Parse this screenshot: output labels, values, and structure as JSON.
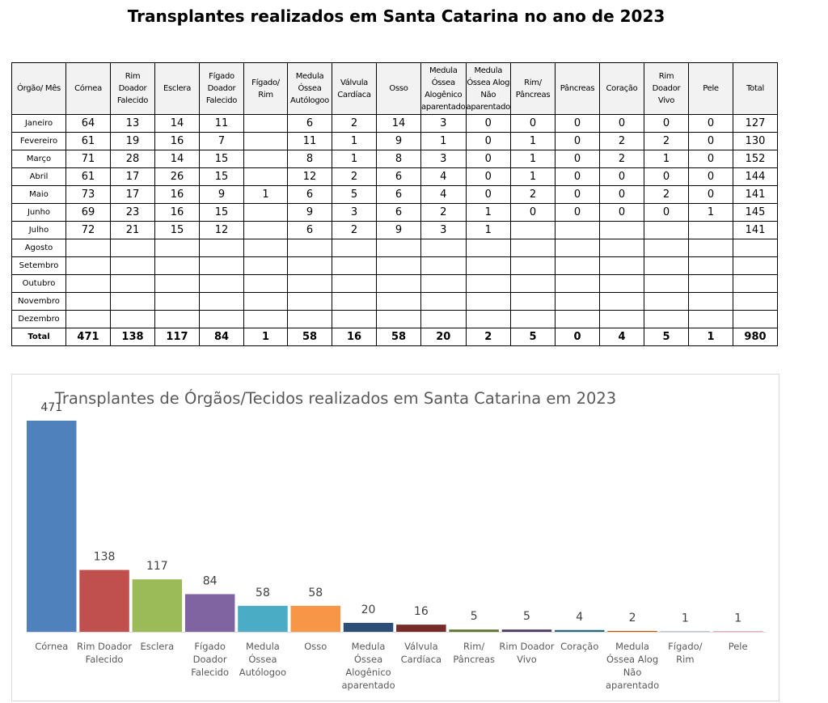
{
  "page_title": "Transplantes realizados em Santa Catarina no ano de 2023",
  "table": {
    "headers": [
      "Órgão/ Mês",
      "Córnea",
      "Rim Doador Falecido",
      "Esclera",
      "Fígado Doador Falecido",
      "Fígado/ Rim",
      "Medula Óssea Autólogoo",
      "Válvula Cardíaca",
      "Osso",
      "Medula Óssea Alogênico aparentado",
      "Medula Óssea Alog Não aparentado",
      "Rim/ Pâncreas",
      "Pâncreas",
      "Coração",
      "Rim Doador Vivo",
      "Pele",
      "Total"
    ],
    "rows": [
      [
        "Janeiro",
        "64",
        "13",
        "14",
        "11",
        "",
        "6",
        "2",
        "14",
        "3",
        "0",
        "0",
        "0",
        "0",
        "0",
        "0",
        "127"
      ],
      [
        "Fevereiro",
        "61",
        "19",
        "16",
        "7",
        "",
        "11",
        "1",
        "9",
        "1",
        "0",
        "1",
        "0",
        "2",
        "2",
        "0",
        "130"
      ],
      [
        "Março",
        "71",
        "28",
        "14",
        "15",
        "",
        "8",
        "1",
        "8",
        "3",
        "0",
        "1",
        "0",
        "2",
        "1",
        "0",
        "152"
      ],
      [
        "Abril",
        "61",
        "17",
        "26",
        "15",
        "",
        "12",
        "2",
        "6",
        "4",
        "0",
        "1",
        "0",
        "0",
        "0",
        "0",
        "144"
      ],
      [
        "Maio",
        "73",
        "17",
        "16",
        "9",
        "1",
        "6",
        "5",
        "6",
        "4",
        "0",
        "2",
        "0",
        "0",
        "2",
        "0",
        "141"
      ],
      [
        "Junho",
        "69",
        "23",
        "16",
        "15",
        "",
        "9",
        "3",
        "6",
        "2",
        "1",
        "0",
        "0",
        "0",
        "0",
        "1",
        "145"
      ],
      [
        "Julho",
        "72",
        "21",
        "15",
        "12",
        "",
        "6",
        "2",
        "9",
        "3",
        "1",
        "",
        "",
        "",
        "",
        "",
        "141"
      ],
      [
        "Agosto",
        "",
        "",
        "",
        "",
        "",
        "",
        "",
        "",
        "",
        "",
        "",
        "",
        "",
        "",
        "",
        ""
      ],
      [
        "Setembro",
        "",
        "",
        "",
        "",
        "",
        "",
        "",
        "",
        "",
        "",
        "",
        "",
        "",
        "",
        "",
        ""
      ],
      [
        "Outubro",
        "",
        "",
        "",
        "",
        "",
        "",
        "",
        "",
        "",
        "",
        "",
        "",
        "",
        "",
        "",
        ""
      ],
      [
        "Novembro",
        "",
        "",
        "",
        "",
        "",
        "",
        "",
        "",
        "",
        "",
        "",
        "",
        "",
        "",
        "",
        ""
      ],
      [
        "Dezembro",
        "",
        "",
        "",
        "",
        "",
        "",
        "",
        "",
        "",
        "",
        "",
        "",
        "",
        "",
        "",
        ""
      ]
    ],
    "total_row": [
      "Total",
      "471",
      "138",
      "117",
      "84",
      "1",
      "58",
      "16",
      "58",
      "20",
      "2",
      "5",
      "0",
      "4",
      "5",
      "1",
      "980"
    ]
  },
  "chart_data": {
    "type": "bar",
    "title": "Transplantes de Órgãos/Tecidos realizados em Santa Catarina em 2023",
    "xlabel": "",
    "ylabel": "",
    "categories": [
      "Córnea",
      "Rim Doador Falecido",
      "Esclera",
      "Fígado Doador Falecido",
      "Medula Óssea Autólogoo",
      "Osso",
      "Medula Óssea Alogênico aparentado",
      "Válvula Cardíaca",
      "Rim/ Pâncreas",
      "Rim Doador Vivo",
      "Coração",
      "Medula Óssea Alog Não aparentado",
      "Fígado/ Rim",
      "Pele"
    ],
    "category_lines": [
      [
        "Córnea"
      ],
      [
        "Rim Doador",
        "Falecido"
      ],
      [
        "Esclera"
      ],
      [
        "Fígado",
        "Doador",
        "Falecido"
      ],
      [
        "Medula",
        "Óssea",
        "Autólogoo"
      ],
      [
        "Osso"
      ],
      [
        "Medula",
        "Óssea",
        "Alogênico",
        "aparentado"
      ],
      [
        "Válvula",
        "Cardíaca"
      ],
      [
        "Rim/",
        "Pâncreas"
      ],
      [
        "Rim Doador",
        "Vivo"
      ],
      [
        "Coração"
      ],
      [
        "Medula",
        "Óssea Alog",
        "Não",
        "aparentado"
      ],
      [
        "Fígado/",
        "Rim"
      ],
      [
        "Pele"
      ]
    ],
    "values": [
      471,
      138,
      117,
      84,
      58,
      58,
      20,
      16,
      5,
      5,
      4,
      2,
      1,
      1
    ],
    "colors": [
      "#4f81bd",
      "#c0504d",
      "#9bbb59",
      "#8064a2",
      "#4bacc6",
      "#f79646",
      "#2c4d75",
      "#772c2a",
      "#5f7530",
      "#4d3b62",
      "#276a7c",
      "#b65708",
      "#729aca",
      "#cd7371"
    ],
    "ylim": [
      0,
      471
    ],
    "grid": false,
    "legend": "none",
    "data_labels": true
  }
}
